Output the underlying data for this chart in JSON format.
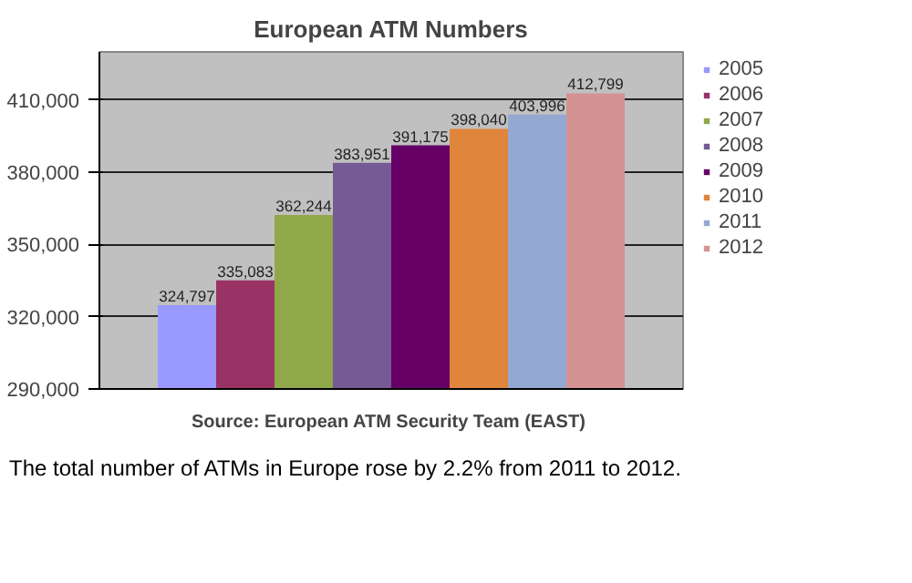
{
  "chart_data": {
    "type": "bar",
    "title": "European ATM Numbers",
    "categories": [
      null
    ],
    "series": [
      {
        "name": "2005",
        "color": "#9999ff",
        "values": [
          324797
        ],
        "value_labels": [
          "324,797"
        ]
      },
      {
        "name": "2006",
        "color": "#993366",
        "values": [
          335083
        ],
        "value_labels": [
          "335,083"
        ]
      },
      {
        "name": "2007",
        "color": "#8fa84a",
        "values": [
          362244
        ],
        "value_labels": [
          "362,244"
        ]
      },
      {
        "name": "2008",
        "color": "#765a94",
        "values": [
          383951
        ],
        "value_labels": [
          "383,951"
        ]
      },
      {
        "name": "2009",
        "color": "#660066",
        "values": [
          391175
        ],
        "value_labels": [
          "391,175"
        ]
      },
      {
        "name": "2010",
        "color": "#e0853c",
        "values": [
          398040
        ],
        "value_labels": [
          "398,040"
        ]
      },
      {
        "name": "2011",
        "color": "#94a9d2",
        "values": [
          403996
        ],
        "value_labels": [
          "403,996"
        ]
      },
      {
        "name": "2012",
        "color": "#d49292",
        "values": [
          412799
        ],
        "value_labels": [
          "412,799"
        ]
      }
    ],
    "ylim": [
      290000,
      430000
    ],
    "yticks": [
      {
        "value": 290000,
        "label": "290,000"
      },
      {
        "value": 320000,
        "label": "320,000"
      },
      {
        "value": 350000,
        "label": "350,000"
      },
      {
        "value": 380000,
        "label": "380,000"
      },
      {
        "value": 410000,
        "label": "410,000"
      }
    ],
    "grid": "y",
    "legend": "right",
    "annotations": [
      "Source:  European ATM Security Team (EAST)",
      "The total number of ATMs in Europe rose by 2.2% from 2011 to 2012."
    ]
  }
}
